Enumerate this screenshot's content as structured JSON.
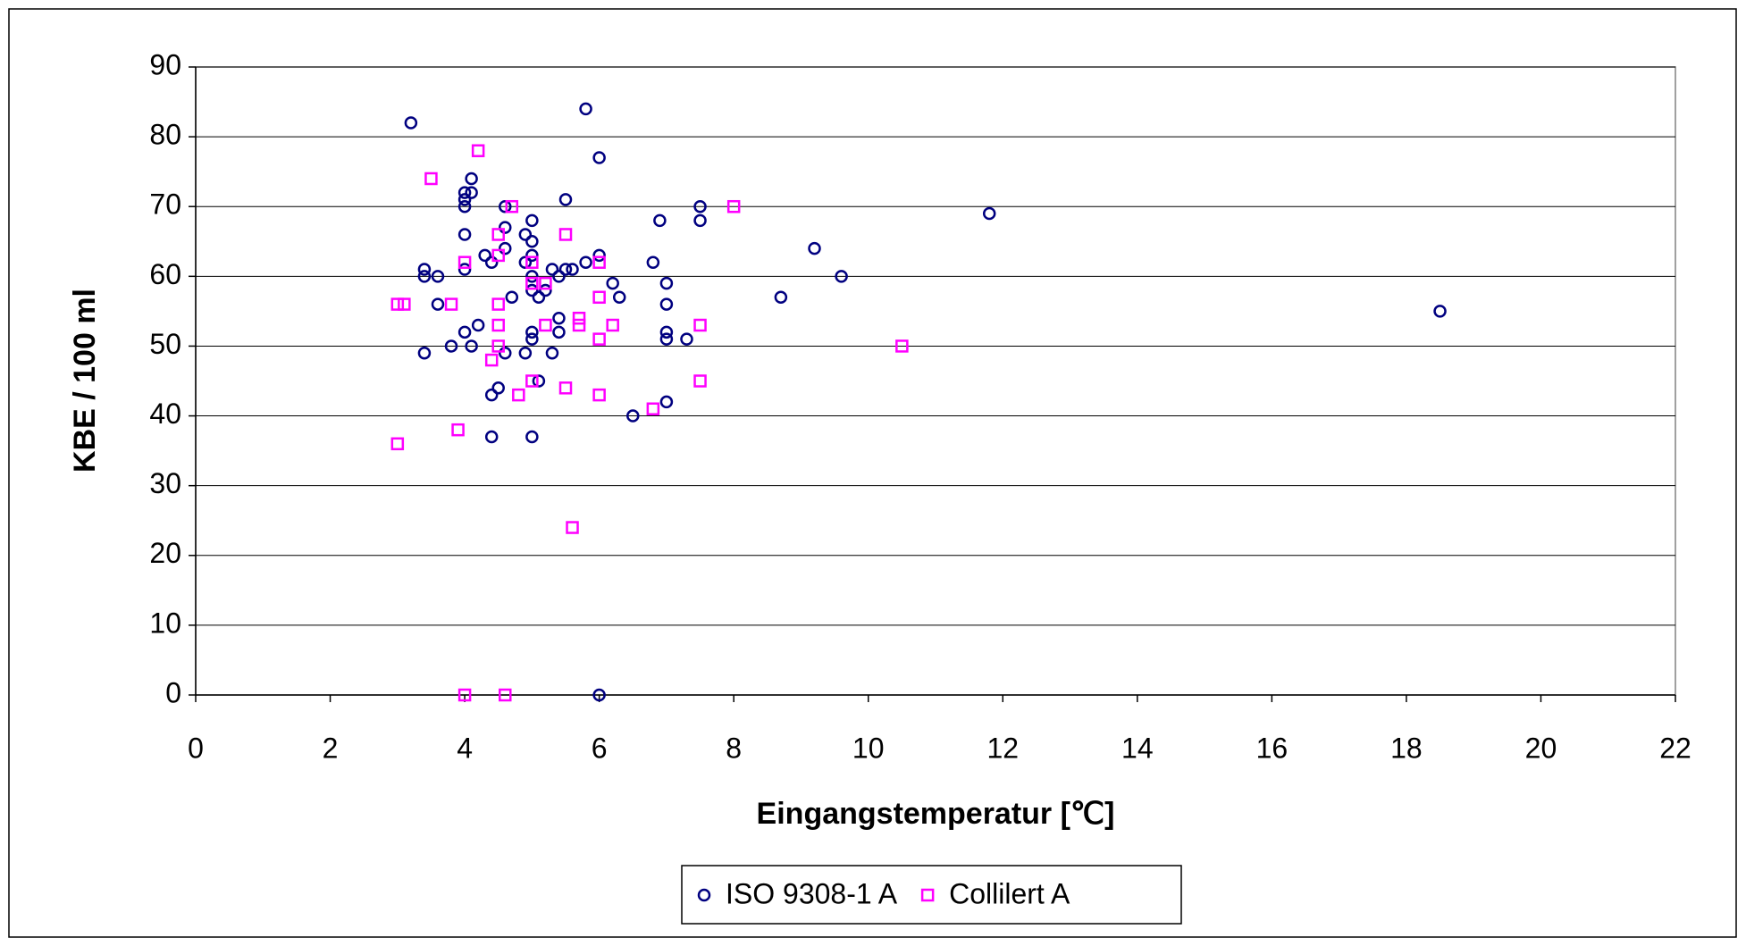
{
  "chart_data": {
    "type": "scatter",
    "x_label": "Eingangstemperatur [℃]",
    "y_label": "KBE / 100 ml",
    "xlim": [
      0,
      22
    ],
    "xticks": [
      0,
      2,
      4,
      6,
      8,
      10,
      12,
      14,
      16,
      18,
      20,
      22
    ],
    "ylim": [
      0,
      90
    ],
    "yticks": [
      0,
      10,
      20,
      30,
      40,
      50,
      60,
      70,
      80,
      90
    ],
    "grid": true,
    "legend": "bottom",
    "series": [
      {
        "name": "ISO 9308-1 A",
        "color": "#000080",
        "marker": "circle",
        "x": [
          3.2,
          5.8,
          6.0,
          4.1,
          4.0,
          4.1,
          4.0,
          4.0,
          4.6,
          5.5,
          7.5,
          7.5,
          6.9,
          5.0,
          4.6,
          4.9,
          4.0,
          5.0,
          9.2,
          4.6,
          4.3,
          6.0,
          5.0,
          4.4,
          4.9,
          5.8,
          6.8,
          3.4,
          4.0,
          5.3,
          5.5,
          5.6,
          3.4,
          3.6,
          5.0,
          5.4,
          9.6,
          11.8,
          6.2,
          7.0,
          5.0,
          5.2,
          5.1,
          4.7,
          6.3,
          8.7,
          3.6,
          7.0,
          18.5,
          5.4,
          4.2,
          4.0,
          5.0,
          5.4,
          7.0,
          5.0,
          7.0,
          7.3,
          3.8,
          4.1,
          3.4,
          4.6,
          4.9,
          5.3,
          5.1,
          4.5,
          4.4,
          7.0,
          6.5,
          4.4,
          5.0,
          6.0
        ],
        "values": [
          82,
          84,
          77,
          74,
          72,
          72,
          71,
          70,
          70,
          71,
          70,
          68,
          68,
          68,
          67,
          66,
          66,
          65,
          64,
          64,
          63,
          63,
          63,
          62,
          62,
          62,
          62,
          61,
          61,
          61,
          61,
          61,
          60,
          60,
          60,
          60,
          60,
          69,
          59,
          59,
          58,
          58,
          57,
          57,
          57,
          57,
          56,
          56,
          55,
          54,
          53,
          52,
          52,
          52,
          52,
          51,
          51,
          51,
          50,
          50,
          49,
          49,
          49,
          49,
          45,
          44,
          43,
          42,
          40,
          37,
          37,
          0
        ]
      },
      {
        "name": "Collilert A",
        "color": "#ff00ff",
        "marker": "square",
        "x": [
          4.2,
          3.5,
          4.7,
          8.0,
          4.5,
          5.5,
          4.5,
          5.0,
          4.0,
          6.0,
          5.0,
          5.2,
          3.0,
          3.1,
          3.8,
          4.5,
          6.0,
          5.7,
          4.5,
          5.2,
          5.7,
          6.2,
          7.5,
          6.0,
          4.5,
          10.5,
          4.4,
          5.0,
          7.5,
          5.5,
          4.8,
          6.0,
          6.8,
          3.9,
          3.0,
          5.6,
          4.0,
          4.6
        ],
        "values": [
          78,
          74,
          70,
          70,
          66,
          66,
          63,
          62,
          62,
          62,
          59,
          59,
          56,
          56,
          56,
          56,
          57,
          54,
          53,
          53,
          53,
          53,
          53,
          51,
          50,
          50,
          48,
          45,
          45,
          44,
          43,
          43,
          41,
          38,
          36,
          24,
          0,
          0
        ]
      }
    ]
  }
}
